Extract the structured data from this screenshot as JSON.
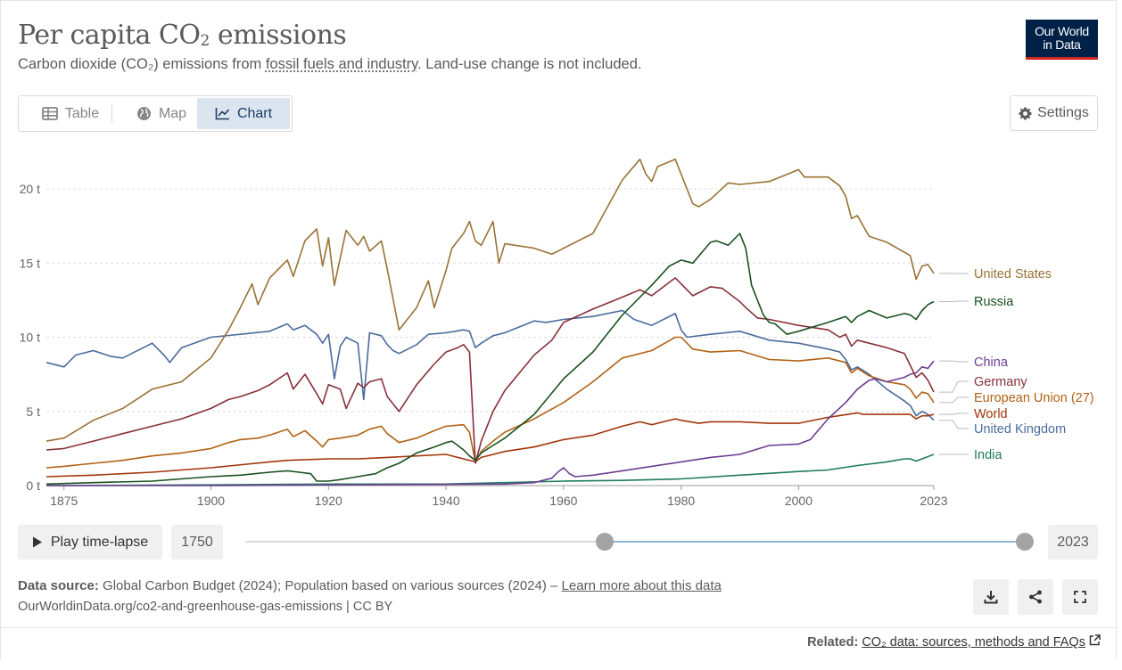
{
  "header": {
    "title_main": "Per capita CO",
    "title_sub": "2",
    "title_end": " emissions",
    "subtitle_pre": "Carbon dioxide (CO₂) emissions from ",
    "subtitle_link": "fossil fuels and industry",
    "subtitle_post": ". Land-use change is not included.",
    "logo_line1": "Our World",
    "logo_line2": "in Data"
  },
  "tabs": [
    {
      "label": "Table",
      "icon": "table-icon"
    },
    {
      "label": "Map",
      "icon": "globe-icon"
    },
    {
      "label": "Chart",
      "icon": "line-chart-icon",
      "active": true
    }
  ],
  "settings_label": "Settings",
  "controls": {
    "play_label": "Play time-lapse",
    "start_year": "1750",
    "end_year": "2023",
    "range_start_fraction": 0.46,
    "range_end_fraction": 1.0
  },
  "footer": {
    "source_label": "Data source:",
    "source_text": " Global Carbon Budget (2024); Population based on various sources (2024) – ",
    "source_link": "Learn more about this data",
    "url": "OurWorldinData.org/co2-and-greenhouse-gas-emissions | CC BY",
    "related_label": "Related:",
    "related_link": "CO₂ data: sources, methods and FAQs"
  },
  "chart_data": {
    "type": "line",
    "xlim": [
      1872,
      2023
    ],
    "ylim": [
      0,
      22
    ],
    "yticks": [
      0,
      5,
      10,
      15,
      20
    ],
    "ytick_labels": [
      "0 t",
      "5 t",
      "10 t",
      "15 t",
      "20 t"
    ],
    "xticks": [
      1875,
      1900,
      1920,
      1940,
      1960,
      1980,
      2000,
      2023
    ],
    "grid": "horizontal-dotted",
    "legend": "end-of-line labels, right",
    "series": [
      {
        "name": "United States",
        "color": "#9a7236",
        "x": [
          1872,
          1875,
          1880,
          1885,
          1890,
          1895,
          1900,
          1903,
          1905,
          1907,
          1908,
          1910,
          1913,
          1914,
          1916,
          1918,
          1919,
          1920,
          1921,
          1923,
          1925,
          1926,
          1927,
          1929,
          1930,
          1932,
          1935,
          1937,
          1938,
          1940,
          1941,
          1943,
          1944,
          1945,
          1946,
          1948,
          1949,
          1950,
          1955,
          1958,
          1960,
          1965,
          1970,
          1973,
          1974,
          1975,
          1976,
          1979,
          1980,
          1982,
          1983,
          1985,
          1988,
          1990,
          1995,
          2000,
          2001,
          2005,
          2007,
          2008,
          2009,
          2010,
          2012,
          2015,
          2019,
          2020,
          2021,
          2022,
          2023
        ],
        "y": [
          3.0,
          3.2,
          4.4,
          5.2,
          6.5,
          7.0,
          8.6,
          10.5,
          12.0,
          13.6,
          12.2,
          14.0,
          15.2,
          14.1,
          16.5,
          17.3,
          14.8,
          16.7,
          13.5,
          17.2,
          16.2,
          16.8,
          15.8,
          16.5,
          14.6,
          10.5,
          12.0,
          13.8,
          12.0,
          14.5,
          16.0,
          17.0,
          17.8,
          16.5,
          16.2,
          17.8,
          15.0,
          16.3,
          16.0,
          15.6,
          16.0,
          17.0,
          20.6,
          22.0,
          21.0,
          20.5,
          21.5,
          22.0,
          21.0,
          19.0,
          18.8,
          19.3,
          20.4,
          20.3,
          20.5,
          21.3,
          20.8,
          20.8,
          20.2,
          19.5,
          18.0,
          18.2,
          16.8,
          16.4,
          15.5,
          13.9,
          14.8,
          14.9,
          14.3
        ]
      },
      {
        "name": "Russia",
        "color": "#19511f",
        "x": [
          1872,
          1880,
          1890,
          1900,
          1905,
          1910,
          1913,
          1915,
          1917,
          1918,
          1920,
          1922,
          1925,
          1928,
          1930,
          1932,
          1935,
          1938,
          1940,
          1941,
          1942,
          1943,
          1944,
          1945,
          1946,
          1948,
          1950,
          1955,
          1960,
          1965,
          1970,
          1975,
          1978,
          1980,
          1982,
          1985,
          1986,
          1988,
          1990,
          1991,
          1992,
          1993,
          1994,
          1995,
          1996,
          1998,
          2000,
          2005,
          2008,
          2009,
          2010,
          2012,
          2015,
          2018,
          2019,
          2020,
          2021,
          2022,
          2023
        ],
        "y": [
          0.1,
          0.2,
          0.3,
          0.6,
          0.7,
          0.9,
          1.0,
          0.9,
          0.8,
          0.3,
          0.3,
          0.4,
          0.6,
          0.8,
          1.2,
          1.5,
          2.2,
          2.6,
          2.9,
          3.0,
          2.7,
          2.4,
          2.0,
          1.7,
          2.2,
          2.7,
          3.2,
          4.8,
          7.2,
          9.0,
          11.5,
          13.5,
          14.8,
          15.2,
          15.0,
          16.4,
          16.5,
          16.2,
          17.0,
          16.0,
          13.5,
          12.5,
          11.5,
          11.0,
          10.9,
          10.2,
          10.4,
          11.0,
          11.4,
          11.0,
          11.4,
          11.8,
          11.3,
          11.6,
          11.5,
          11.2,
          11.8,
          12.2,
          12.4
        ]
      },
      {
        "name": "Germany",
        "color": "#883039",
        "x": [
          1872,
          1875,
          1880,
          1885,
          1890,
          1895,
          1900,
          1903,
          1905,
          1908,
          1910,
          1913,
          1914,
          1916,
          1918,
          1919,
          1920,
          1922,
          1923,
          1925,
          1926,
          1927,
          1929,
          1930,
          1932,
          1935,
          1938,
          1940,
          1942,
          1943,
          1944,
          1945,
          1946,
          1948,
          1950,
          1955,
          1958,
          1960,
          1965,
          1970,
          1973,
          1975,
          1979,
          1980,
          1982,
          1985,
          1987,
          1990,
          1991,
          1993,
          1995,
          2000,
          2005,
          2007,
          2008,
          2009,
          2010,
          2012,
          2015,
          2018,
          2019,
          2020,
          2021,
          2022,
          2023
        ],
        "y": [
          2.4,
          2.5,
          3.0,
          3.5,
          4.0,
          4.5,
          5.2,
          5.8,
          6.0,
          6.4,
          6.8,
          7.6,
          6.5,
          7.5,
          6.2,
          5.5,
          6.8,
          6.5,
          5.2,
          6.9,
          6.6,
          7.0,
          7.2,
          6.0,
          5.0,
          6.8,
          8.2,
          9.0,
          9.3,
          9.5,
          9.0,
          1.5,
          3.0,
          5.0,
          6.4,
          8.8,
          9.8,
          11.0,
          11.9,
          12.7,
          13.2,
          12.8,
          14.0,
          13.6,
          12.8,
          13.4,
          13.3,
          12.4,
          12.0,
          11.3,
          11.2,
          10.8,
          10.5,
          10.0,
          10.2,
          9.4,
          9.8,
          9.6,
          9.3,
          8.9,
          8.1,
          7.3,
          7.6,
          7.1,
          6.3
        ]
      },
      {
        "name": "China",
        "color": "#6d3e91",
        "x": [
          1872,
          1900,
          1950,
          1955,
          1958,
          1959,
          1960,
          1961,
          1962,
          1965,
          1970,
          1975,
          1980,
          1985,
          1990,
          1995,
          2000,
          2002,
          2005,
          2008,
          2010,
          2012,
          2013,
          2015,
          2018,
          2019,
          2020,
          2021,
          2022,
          2023
        ],
        "y": [
          0.0,
          0.0,
          0.1,
          0.2,
          0.5,
          0.9,
          1.2,
          0.8,
          0.6,
          0.7,
          1.0,
          1.3,
          1.6,
          1.9,
          2.1,
          2.7,
          2.8,
          3.1,
          4.5,
          5.6,
          6.5,
          7.1,
          7.2,
          7.0,
          7.3,
          7.5,
          7.6,
          8.0,
          7.9,
          8.4
        ]
      },
      {
        "name": "European Union (27)",
        "color": "#b16214",
        "x": [
          1872,
          1875,
          1880,
          1885,
          1890,
          1895,
          1900,
          1903,
          1905,
          1908,
          1910,
          1913,
          1914,
          1916,
          1918,
          1919,
          1920,
          1922,
          1925,
          1927,
          1929,
          1930,
          1932,
          1935,
          1938,
          1940,
          1943,
          1944,
          1945,
          1946,
          1948,
          1950,
          1955,
          1960,
          1965,
          1970,
          1975,
          1979,
          1980,
          1982,
          1985,
          1990,
          1995,
          2000,
          2005,
          2008,
          2009,
          2010,
          2012,
          2015,
          2018,
          2019,
          2020,
          2021,
          2022,
          2023
        ],
        "y": [
          1.2,
          1.3,
          1.5,
          1.7,
          2.0,
          2.2,
          2.5,
          2.9,
          3.1,
          3.2,
          3.4,
          3.8,
          3.3,
          3.7,
          3.0,
          2.6,
          3.1,
          3.2,
          3.4,
          3.8,
          4.0,
          3.5,
          2.9,
          3.2,
          3.7,
          4.0,
          4.1,
          3.6,
          1.6,
          2.3,
          3.0,
          3.6,
          4.5,
          5.6,
          7.0,
          8.6,
          9.1,
          10.0,
          10.0,
          9.2,
          9.0,
          9.1,
          8.5,
          8.4,
          8.6,
          8.3,
          7.6,
          7.9,
          7.4,
          7.0,
          6.8,
          6.5,
          5.9,
          6.3,
          6.2,
          5.6
        ]
      },
      {
        "name": "World",
        "color": "#a2350c",
        "x": [
          1872,
          1880,
          1890,
          1900,
          1910,
          1913,
          1920,
          1925,
          1930,
          1940,
          1945,
          1946,
          1950,
          1955,
          1960,
          1965,
          1970,
          1973,
          1975,
          1979,
          1980,
          1983,
          1985,
          1990,
          1995,
          2000,
          2005,
          2010,
          2011,
          2012,
          2015,
          2019,
          2020,
          2021,
          2022,
          2023
        ],
        "y": [
          0.6,
          0.7,
          0.9,
          1.2,
          1.6,
          1.7,
          1.8,
          1.8,
          1.9,
          2.1,
          1.6,
          1.9,
          2.3,
          2.6,
          3.1,
          3.4,
          4.0,
          4.3,
          4.1,
          4.5,
          4.4,
          4.2,
          4.3,
          4.3,
          4.2,
          4.2,
          4.6,
          4.9,
          4.8,
          4.8,
          4.8,
          4.8,
          4.5,
          4.7,
          4.7,
          4.8
        ]
      },
      {
        "name": "United Kingdom",
        "color": "#4c6a9c",
        "x": [
          1872,
          1875,
          1877,
          1880,
          1883,
          1885,
          1890,
          1892,
          1893,
          1895,
          1900,
          1905,
          1910,
          1913,
          1914,
          1916,
          1918,
          1919,
          1920,
          1921,
          1922,
          1923,
          1925,
          1926,
          1927,
          1929,
          1930,
          1931,
          1932,
          1935,
          1937,
          1940,
          1943,
          1944,
          1945,
          1946,
          1948,
          1950,
          1955,
          1957,
          1960,
          1965,
          1970,
          1972,
          1975,
          1979,
          1980,
          1981,
          1985,
          1990,
          1995,
          2000,
          2005,
          2007,
          2008,
          2009,
          2010,
          2012,
          2015,
          2018,
          2019,
          2020,
          2021,
          2022,
          2023
        ],
        "y": [
          8.3,
          8.0,
          8.8,
          9.1,
          8.7,
          8.6,
          9.6,
          8.8,
          8.3,
          9.3,
          10.0,
          10.2,
          10.4,
          10.9,
          10.5,
          10.8,
          10.2,
          9.6,
          10.2,
          7.2,
          9.4,
          10.0,
          9.6,
          5.8,
          10.3,
          10.1,
          9.5,
          9.1,
          8.9,
          9.5,
          10.2,
          10.3,
          10.5,
          10.4,
          9.3,
          9.6,
          10.1,
          10.3,
          11.1,
          11.0,
          11.2,
          11.4,
          11.8,
          11.2,
          10.8,
          11.6,
          10.5,
          10.0,
          10.2,
          10.4,
          9.8,
          9.6,
          9.2,
          9.0,
          8.5,
          7.8,
          8.0,
          7.5,
          6.5,
          5.7,
          5.4,
          4.7,
          5.0,
          4.8,
          4.4
        ]
      },
      {
        "name": "India",
        "color": "#1f7b5c",
        "x": [
          1872,
          1900,
          1920,
          1940,
          1950,
          1960,
          1970,
          1980,
          1990,
          2000,
          2005,
          2010,
          2015,
          2018,
          2019,
          2020,
          2021,
          2022,
          2023
        ],
        "y": [
          0.0,
          0.05,
          0.1,
          0.1,
          0.2,
          0.3,
          0.35,
          0.45,
          0.7,
          0.95,
          1.05,
          1.35,
          1.6,
          1.8,
          1.8,
          1.65,
          1.8,
          1.95,
          2.1
        ]
      }
    ],
    "labels": [
      {
        "name": "United States",
        "color": "#9a7236"
      },
      {
        "name": "Russia",
        "color": "#19511f"
      },
      {
        "name": "China",
        "color": "#6d3e91"
      },
      {
        "name": "Germany",
        "color": "#883039"
      },
      {
        "name": "European Union (27)",
        "color": "#b16214"
      },
      {
        "name": "World",
        "color": "#a2350c"
      },
      {
        "name": "United Kingdom",
        "color": "#4c6a9c"
      },
      {
        "name": "India",
        "color": "#1f7b5c"
      }
    ]
  }
}
